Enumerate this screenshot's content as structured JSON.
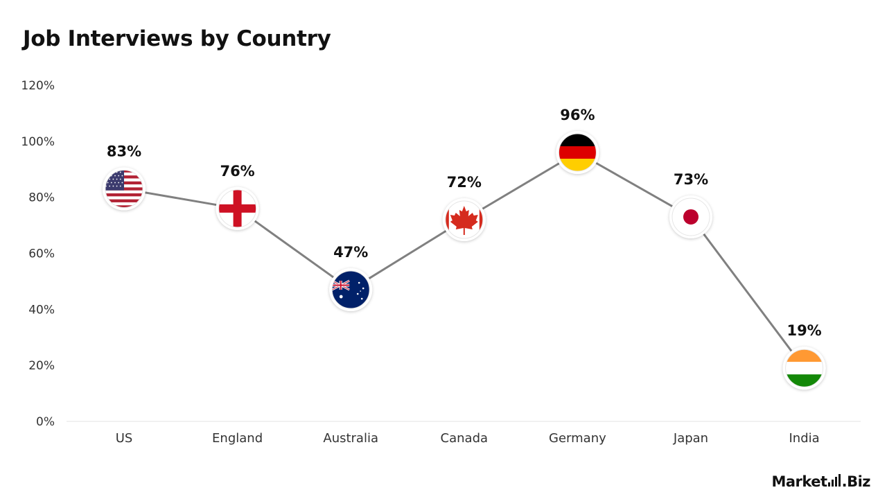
{
  "chart_data": {
    "type": "line",
    "title": "Job Interviews by Country",
    "xlabel": "",
    "ylabel": "",
    "categories": [
      "US",
      "England",
      "Australia",
      "Canada",
      "Germany",
      "Japan",
      "India"
    ],
    "values": [
      83,
      76,
      47,
      72,
      96,
      73,
      19
    ],
    "value_labels": [
      "83%",
      "76%",
      "47%",
      "72%",
      "96%",
      "73%",
      "19%"
    ],
    "flag_icons": [
      "us-flag-icon",
      "england-flag-icon",
      "australia-flag-icon",
      "canada-flag-icon",
      "germany-flag-icon",
      "japan-flag-icon",
      "india-flag-icon"
    ],
    "y_ticks": [
      0,
      20,
      40,
      60,
      80,
      100,
      120
    ],
    "y_tick_labels": [
      "0%",
      "20%",
      "40%",
      "60%",
      "80%",
      "100%",
      "120%"
    ],
    "ylim": [
      0,
      120
    ],
    "grid": false,
    "legend": "none",
    "line_color": "#808080"
  },
  "branding": {
    "logo_left": "Market",
    "logo_right": ".Biz"
  }
}
